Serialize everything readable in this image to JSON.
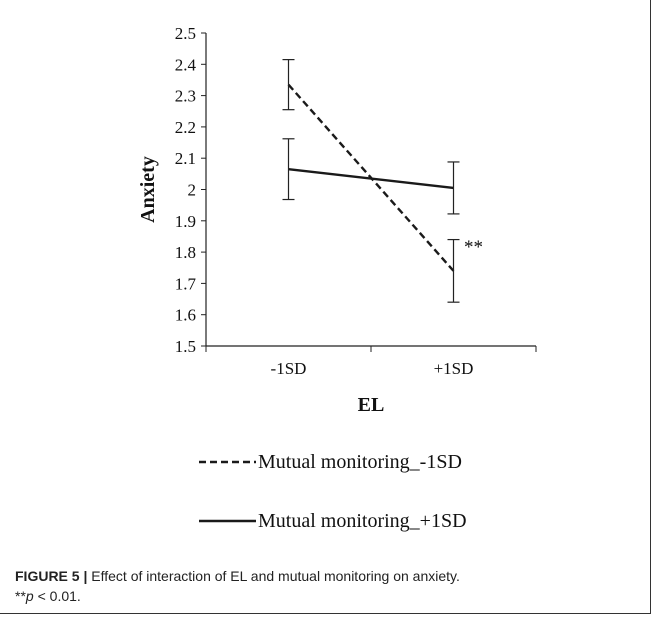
{
  "chart_data": {
    "type": "line",
    "categories": [
      "-1SD",
      "+1SD"
    ],
    "xlabel": "EL",
    "ylabel": "Anxiety",
    "ylim": [
      1.5,
      2.5
    ],
    "ytick_step": 0.1,
    "yticks": [
      "1.5",
      "1.6",
      "1.7",
      "1.8",
      "1.9",
      "2",
      "2.1",
      "2.2",
      "2.3",
      "2.4",
      "2.5"
    ],
    "grid": false,
    "legend_position": "bottom",
    "series": [
      {
        "name": "Mutual monitoring_-1SD",
        "values": [
          2.335,
          1.74
        ],
        "error": [
          0.08,
          0.1
        ],
        "line_style": "dashed",
        "color": "#1a1a1a"
      },
      {
        "name": "Mutual monitoring_+1SD",
        "values": [
          2.065,
          2.005
        ],
        "error": [
          0.097,
          0.083
        ],
        "line_style": "solid",
        "color": "#1a1a1a"
      }
    ],
    "annotations": [
      {
        "text": "**",
        "x_position": 1.5,
        "y": 1.82
      }
    ]
  },
  "caption": {
    "label": "FIGURE 5 |",
    "text": " Effect of interaction of EL and mutual monitoring on anxiety.",
    "note_stars": "**",
    "note_p": "p",
    "note_rest": " < 0.01."
  }
}
